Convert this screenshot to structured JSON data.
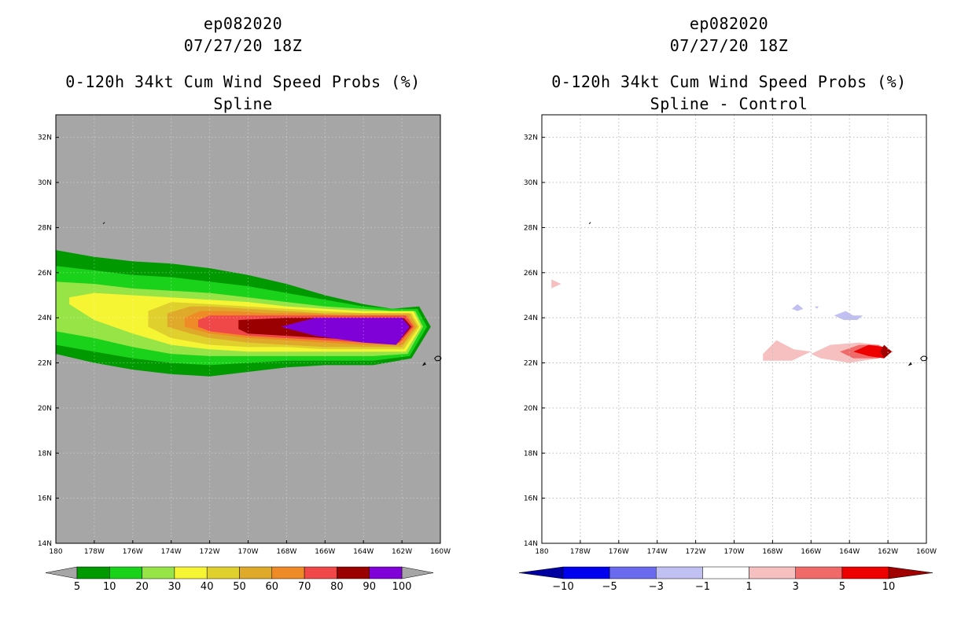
{
  "left": {
    "storm_id": "ep082020",
    "datetime": "07/27/20 18Z",
    "product": "0-120h 34kt Cum Wind Speed Probs (%)",
    "subtitle": "Spline"
  },
  "right": {
    "storm_id": "ep082020",
    "datetime": "07/27/20 18Z",
    "product": "0-120h 34kt Cum Wind Speed Probs (%)",
    "subtitle": "Spline - Control"
  },
  "chart_data": [
    {
      "type": "heatmap",
      "title": "0-120h 34kt Cum Wind Speed Probs (%) Spline",
      "xlim": [
        180,
        160
      ],
      "ylim": [
        14,
        33
      ],
      "x_ticks": [
        "180",
        "178W",
        "176W",
        "174W",
        "172W",
        "170W",
        "168W",
        "166W",
        "164W",
        "162W",
        "160W"
      ],
      "y_ticks": [
        "14N",
        "16N",
        "18N",
        "20N",
        "22N",
        "24N",
        "26N",
        "28N",
        "30N",
        "32N"
      ],
      "background_color": "#a6a6a6",
      "colorbar": {
        "levels": [
          "5",
          "10",
          "20",
          "30",
          "40",
          "50",
          "60",
          "70",
          "80",
          "90",
          "100"
        ],
        "colors": [
          "#009900",
          "#1ad21a",
          "#96e445",
          "#f5f534",
          "#e0d02e",
          "#dfaa2a",
          "#ef8b27",
          "#f04848",
          "#9b0000",
          "#8000d8"
        ]
      },
      "contours": [
        {
          "level": "5",
          "color": "#009900",
          "outline": [
            [
              180,
              27.0
            ],
            [
              178,
              26.7
            ],
            [
              176,
              26.5
            ],
            [
              174,
              26.4
            ],
            [
              172,
              26.2
            ],
            [
              170,
              25.9
            ],
            [
              168,
              25.5
            ],
            [
              166,
              25.0
            ],
            [
              164,
              24.6
            ],
            [
              162.5,
              24.4
            ],
            [
              161.1,
              24.5
            ],
            [
              160.5,
              23.6
            ],
            [
              161.5,
              22.2
            ],
            [
              163.5,
              21.9
            ],
            [
              166,
              21.9
            ],
            [
              168,
              21.8
            ],
            [
              170,
              21.6
            ],
            [
              172,
              21.4
            ],
            [
              174,
              21.5
            ],
            [
              176,
              21.7
            ],
            [
              178,
              22.0
            ],
            [
              180,
              22.4
            ]
          ]
        },
        {
          "level": "10",
          "color": "#1ad21a",
          "outline": [
            [
              180,
              26.3
            ],
            [
              178,
              26.1
            ],
            [
              176,
              25.9
            ],
            [
              174,
              25.8
            ],
            [
              172,
              25.6
            ],
            [
              170,
              25.4
            ],
            [
              168,
              25.1
            ],
            [
              166,
              24.8
            ],
            [
              164,
              24.5
            ],
            [
              162.5,
              24.4
            ],
            [
              161.2,
              24.4
            ],
            [
              160.7,
              23.6
            ],
            [
              161.6,
              22.3
            ],
            [
              163.5,
              22.1
            ],
            [
              166,
              22.1
            ],
            [
              168,
              22.1
            ],
            [
              170,
              22.0
            ],
            [
              172,
              21.9
            ],
            [
              174,
              22.0
            ],
            [
              176,
              22.2
            ],
            [
              178,
              22.5
            ],
            [
              180,
              22.8
            ]
          ]
        },
        {
          "level": "20",
          "color": "#96e445",
          "outline": [
            [
              180,
              25.6
            ],
            [
              178,
              25.5
            ],
            [
              176,
              25.3
            ],
            [
              174,
              25.2
            ],
            [
              172,
              25.1
            ],
            [
              170,
              24.9
            ],
            [
              168,
              24.7
            ],
            [
              166,
              24.5
            ],
            [
              164,
              24.4
            ],
            [
              162.5,
              24.3
            ],
            [
              161.3,
              24.3
            ],
            [
              160.9,
              23.6
            ],
            [
              161.7,
              22.4
            ],
            [
              163.5,
              22.3
            ],
            [
              166,
              22.3
            ],
            [
              168,
              22.3
            ],
            [
              170,
              22.3
            ],
            [
              172,
              22.3
            ],
            [
              174,
              22.4
            ],
            [
              176,
              22.7
            ],
            [
              178,
              23.1
            ],
            [
              180,
              23.4
            ]
          ]
        },
        {
          "level": "30",
          "color": "#f5f534",
          "outline": [
            [
              179.3,
              24.9
            ],
            [
              178,
              25.1
            ],
            [
              176,
              25.0
            ],
            [
              174,
              24.9
            ],
            [
              172,
              24.8
            ],
            [
              170,
              24.7
            ],
            [
              168,
              24.5
            ],
            [
              166,
              24.4
            ],
            [
              164,
              24.3
            ],
            [
              162.5,
              24.3
            ],
            [
              161.4,
              24.3
            ],
            [
              161.0,
              23.6
            ],
            [
              161.8,
              22.5
            ],
            [
              163.5,
              22.5
            ],
            [
              166,
              22.5
            ],
            [
              168,
              22.5
            ],
            [
              170,
              22.5
            ],
            [
              172,
              22.6
            ],
            [
              174,
              22.8
            ],
            [
              176,
              23.3
            ],
            [
              178,
              23.9
            ],
            [
              179.3,
              24.6
            ]
          ]
        },
        {
          "level": "40",
          "color": "#e0d02e",
          "outline": [
            [
              175.2,
              24.3
            ],
            [
              174,
              24.7
            ],
            [
              172,
              24.6
            ],
            [
              170,
              24.5
            ],
            [
              168,
              24.4
            ],
            [
              166,
              24.3
            ],
            [
              164,
              24.2
            ],
            [
              162.5,
              24.2
            ],
            [
              161.5,
              24.2
            ],
            [
              161.1,
              23.6
            ],
            [
              161.9,
              22.6
            ],
            [
              163.5,
              22.6
            ],
            [
              166,
              22.6
            ],
            [
              168,
              22.7
            ],
            [
              170,
              22.7
            ],
            [
              172,
              22.8
            ],
            [
              174,
              23.1
            ],
            [
              175.2,
              23.6
            ]
          ]
        },
        {
          "level": "50",
          "color": "#dfaa2a",
          "outline": [
            [
              174.2,
              24.2
            ],
            [
              173,
              24.5
            ],
            [
              172,
              24.5
            ],
            [
              170,
              24.4
            ],
            [
              168,
              24.3
            ],
            [
              166,
              24.2
            ],
            [
              164,
              24.2
            ],
            [
              162.5,
              24.2
            ],
            [
              161.6,
              24.2
            ],
            [
              161.2,
              23.6
            ],
            [
              162.0,
              22.7
            ],
            [
              163.5,
              22.7
            ],
            [
              166,
              22.7
            ],
            [
              168,
              22.8
            ],
            [
              170,
              22.9
            ],
            [
              172,
              23.1
            ],
            [
              173,
              23.3
            ],
            [
              174.2,
              23.6
            ]
          ]
        },
        {
          "level": "60",
          "color": "#ef8b27",
          "outline": [
            [
              173.3,
              24.0
            ],
            [
              172.5,
              24.3
            ],
            [
              171,
              24.3
            ],
            [
              169,
              24.2
            ],
            [
              167,
              24.2
            ],
            [
              165,
              24.1
            ],
            [
              163,
              24.1
            ],
            [
              161.7,
              24.1
            ],
            [
              161.3,
              23.6
            ],
            [
              162.0,
              22.8
            ],
            [
              164,
              22.8
            ],
            [
              166,
              22.9
            ],
            [
              168,
              23.0
            ],
            [
              170,
              23.1
            ],
            [
              172,
              23.3
            ],
            [
              173.3,
              23.6
            ]
          ]
        },
        {
          "level": "70",
          "color": "#f04848",
          "outline": [
            [
              172.6,
              23.9
            ],
            [
              172,
              24.1
            ],
            [
              170,
              24.1
            ],
            [
              168,
              24.1
            ],
            [
              166,
              24.1
            ],
            [
              164,
              24.1
            ],
            [
              161.8,
              24.1
            ],
            [
              161.4,
              23.6
            ],
            [
              162.1,
              22.9
            ],
            [
              164,
              22.9
            ],
            [
              166,
              23.0
            ],
            [
              168,
              23.1
            ],
            [
              170,
              23.2
            ],
            [
              172,
              23.4
            ],
            [
              172.6,
              23.6
            ]
          ]
        },
        {
          "level": "80",
          "color": "#9b0000",
          "outline": [
            [
              170.5,
              23.9
            ],
            [
              168,
              24.0
            ],
            [
              166,
              24.0
            ],
            [
              164,
              24.0
            ],
            [
              161.9,
              24.0
            ],
            [
              161.5,
              23.6
            ],
            [
              162.2,
              22.9
            ],
            [
              164,
              23.0
            ],
            [
              166,
              23.1
            ],
            [
              168,
              23.2
            ],
            [
              170,
              23.3
            ],
            [
              170.5,
              23.5
            ]
          ]
        },
        {
          "level": "90",
          "color": "#8000d8",
          "outline": [
            [
              168.3,
              23.6
            ],
            [
              166.5,
              24.0
            ],
            [
              164,
              24.0
            ],
            [
              162,
              24.0
            ],
            [
              161.6,
              23.6
            ],
            [
              162.3,
              22.8
            ],
            [
              164,
              22.9
            ],
            [
              166.5,
              23.2
            ]
          ]
        }
      ]
    },
    {
      "type": "heatmap",
      "title": "0-120h 34kt Cum Wind Speed Probs (%) Spline - Control",
      "xlim": [
        180,
        160
      ],
      "ylim": [
        14,
        33
      ],
      "x_ticks": [
        "180",
        "178W",
        "176W",
        "174W",
        "172W",
        "170W",
        "168W",
        "166W",
        "164W",
        "162W",
        "160W"
      ],
      "y_ticks": [
        "14N",
        "16N",
        "18N",
        "20N",
        "22N",
        "24N",
        "26N",
        "28N",
        "30N",
        "32N"
      ],
      "background_color": "#ffffff",
      "grid": true,
      "colorbar": {
        "levels": [
          "-10",
          "-5",
          "-3",
          "-1",
          "1",
          "3",
          "5",
          "10"
        ],
        "colors": [
          "#0000a0",
          "#0000ee",
          "#6a6aee",
          "#c0c0f2",
          "#ffffff",
          "#f6c0c0",
          "#f06a6a",
          "#ee0000",
          "#a00000"
        ]
      },
      "contours": [
        {
          "level": "1",
          "color": "#f6c0c0",
          "outline": [
            [
              179.5,
              25.7
            ],
            [
              179.0,
              25.5
            ],
            [
              179.5,
              25.3
            ]
          ]
        },
        {
          "level": "1",
          "color": "#f6c0c0",
          "outline": [
            [
              168.5,
              22.4
            ],
            [
              167.8,
              23.0
            ],
            [
              166.9,
              22.6
            ],
            [
              166.0,
              22.5
            ],
            [
              167.0,
              22.1
            ],
            [
              168.5,
              22.1
            ]
          ]
        },
        {
          "level": "1",
          "color": "#f6c0c0",
          "outline": [
            [
              166.0,
              22.4
            ],
            [
              165,
              22.8
            ],
            [
              163.5,
              22.9
            ],
            [
              162.5,
              22.8
            ],
            [
              161.7,
              22.5
            ],
            [
              162.5,
              22.2
            ],
            [
              164,
              22.0
            ],
            [
              165.5,
              22.2
            ]
          ]
        },
        {
          "level": "3",
          "color": "#f06a6a",
          "outline": [
            [
              164.5,
              22.5
            ],
            [
              163.5,
              22.8
            ],
            [
              162.5,
              22.8
            ],
            [
              161.9,
              22.5
            ],
            [
              162.5,
              22.2
            ],
            [
              163.8,
              22.2
            ]
          ]
        },
        {
          "level": "5",
          "color": "#ee0000",
          "outline": [
            [
              163.8,
              22.5
            ],
            [
              163,
              22.8
            ],
            [
              162.2,
              22.7
            ],
            [
              161.9,
              22.5
            ],
            [
              162.2,
              22.2
            ],
            [
              163,
              22.3
            ]
          ]
        },
        {
          "level": "10",
          "color": "#a00000",
          "outline": [
            [
              162.4,
              22.5
            ],
            [
              162.2,
              22.8
            ],
            [
              161.8,
              22.5
            ],
            [
              162.2,
              22.2
            ]
          ]
        },
        {
          "level": "-1",
          "color": "#c0c0f2",
          "outline": [
            [
              167.0,
              24.4
            ],
            [
              166.7,
              24.6
            ],
            [
              166.4,
              24.4
            ],
            [
              166.7,
              24.3
            ]
          ]
        },
        {
          "level": "-1",
          "color": "#c0c0f2",
          "outline": [
            [
              165.8,
              24.5
            ],
            [
              165.6,
              24.5
            ],
            [
              165.7,
              24.4
            ]
          ]
        },
        {
          "level": "-1",
          "color": "#c0c0f2",
          "outline": [
            [
              164.8,
              24.1
            ],
            [
              164.2,
              24.3
            ],
            [
              163.8,
              24.1
            ],
            [
              163.3,
              24.1
            ],
            [
              163.6,
              23.9
            ],
            [
              164.3,
              23.9
            ]
          ]
        }
      ]
    }
  ]
}
